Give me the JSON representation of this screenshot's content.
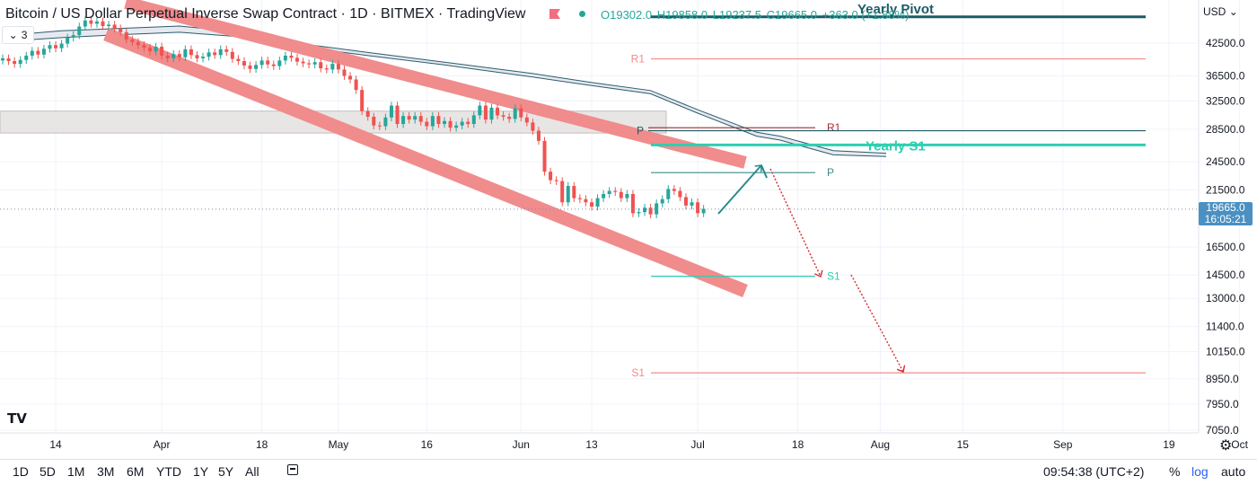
{
  "header": {
    "title": "Bitcoin / US Dollar Perpetual Inverse Swap Contract · 1D · BITMEX · TradingView",
    "ohlc": {
      "open": "O19302.0",
      "high": "H19858.0",
      "low": "L19237.5",
      "close": "C19665.0",
      "change": "+363.0 (+1.88%)"
    },
    "collapse_count": "3",
    "currency": "USD"
  },
  "price_tag": {
    "price": "19665.0",
    "countdown": "16:05:21"
  },
  "chart_data": {
    "type": "candlestick",
    "y_scale": "log",
    "ylim": [
      6500,
      52000
    ],
    "y_ticks": [
      "42500.0",
      "36500.0",
      "32500.0",
      "28500.0",
      "24500.0",
      "21500.0",
      "19665.0",
      "16500.0",
      "14500.0",
      "13000.0",
      "11400.0",
      "10150.0",
      "8950.0",
      "7950.0",
      "7050.0"
    ],
    "y_tick_values": [
      42500,
      36500,
      32500,
      28500,
      24500,
      21500,
      19665,
      16500,
      14500,
      13000,
      11400,
      10150,
      8950,
      7950,
      7050
    ],
    "x_ticks": [
      "14",
      "Apr",
      "18",
      "May",
      "16",
      "Jun",
      "13",
      "Jul",
      "18",
      "Aug",
      "15",
      "Sep",
      "19",
      "Oct"
    ],
    "x_tick_dates": [
      "2022-03-14",
      "2022-04-01",
      "2022-04-18",
      "2022-05-01",
      "2022-05-16",
      "2022-06-01",
      "2022-06-13",
      "2022-07-01",
      "2022-07-18",
      "2022-08-01",
      "2022-08-15",
      "2022-09-01",
      "2022-09-19",
      "2022-10-01"
    ],
    "closes": [
      39600,
      39100,
      38600,
      39300,
      40100,
      41000,
      40300,
      41400,
      42100,
      41500,
      42400,
      43600,
      44100,
      45900,
      47200,
      46500,
      47000,
      46000,
      46300,
      45500,
      44700,
      43200,
      42700,
      42100,
      41600,
      40900,
      41800,
      40100,
      39600,
      40400,
      39800,
      41300,
      40200,
      39600,
      39900,
      40700,
      40200,
      41300,
      40800,
      39500,
      39100,
      38300,
      37700,
      38400,
      39200,
      38500,
      38200,
      39200,
      40100,
      39700,
      39000,
      38700,
      38500,
      38900,
      37800,
      37600,
      38600,
      37600,
      36500,
      35900,
      34200,
      31000,
      30200,
      29000,
      28900,
      30100,
      31800,
      29200,
      30300,
      29800,
      30300,
      29500,
      28900,
      30300,
      29200,
      29600,
      28700,
      29000,
      29500,
      29200,
      30400,
      31800,
      29800,
      31500,
      30400,
      30200,
      29900,
      31400,
      30100,
      29400,
      28300,
      27000,
      23400,
      22500,
      22400,
      20300,
      21900,
      20700,
      20600,
      20300,
      19900,
      20700,
      21100,
      21400,
      21300,
      20700,
      21100,
      19300,
      19400,
      19800,
      19200,
      20200,
      20600,
      21600,
      21400,
      20800,
      20000,
      20300,
      19300,
      19700
    ],
    "series_closes_start_date": "2022-03-05",
    "ichimoku_upper": [
      [
        0,
        44000
      ],
      [
        10,
        45000
      ],
      [
        20,
        45500
      ],
      [
        30,
        46000
      ],
      [
        40,
        44800
      ],
      [
        50,
        42500
      ],
      [
        62,
        40700
      ],
      [
        75,
        38900
      ],
      [
        90,
        36900
      ],
      [
        100,
        35400
      ],
      [
        110,
        34100
      ],
      [
        118,
        31200
      ],
      [
        128,
        28100
      ],
      [
        132,
        27600
      ],
      [
        141,
        25800
      ],
      [
        150,
        25500
      ]
    ],
    "ichimoku_lower": [
      [
        0,
        42800
      ],
      [
        10,
        43600
      ],
      [
        20,
        44200
      ],
      [
        30,
        44700
      ],
      [
        40,
        43800
      ],
      [
        50,
        41900
      ],
      [
        62,
        40100
      ],
      [
        75,
        38400
      ],
      [
        90,
        36300
      ],
      [
        100,
        34900
      ],
      [
        110,
        33600
      ],
      [
        118,
        30700
      ],
      [
        128,
        27600
      ],
      [
        132,
        27100
      ],
      [
        141,
        25300
      ],
      [
        150,
        25100
      ]
    ],
    "annotations": {
      "pivot_lines": [
        {
          "label": "Yearly Pivot",
          "value": 48000,
          "color": "#1e5b66"
        },
        {
          "label": "R1",
          "value": 39500,
          "color": "#f28b8b"
        },
        {
          "label": "R1",
          "value": 28700,
          "color": "#a62a2a"
        },
        {
          "label": "P",
          "value": 28300,
          "color": "#1e5b66"
        },
        {
          "label": "Yearly S1",
          "value": 26500,
          "color": "#2ecfb1"
        },
        {
          "label": "P",
          "value": 23300,
          "color": "#3d8c8c"
        },
        {
          "label": "S1",
          "value": 14400,
          "color": "#2ecfb1"
        },
        {
          "label": "S1",
          "value": 9200,
          "color": "#f28b8b"
        }
      ],
      "zone": {
        "from": 28000,
        "to": 31000
      },
      "current_price": 19665
    }
  },
  "bottom_bar": {
    "ranges": [
      "1D",
      "5D",
      "1M",
      "3M",
      "6M",
      "YTD",
      "1Y",
      "5Y",
      "All"
    ],
    "time": "09:54:38 (UTC+2)",
    "percent": "%",
    "log": "log",
    "auto": "auto"
  },
  "colors": {
    "up": "#26a69a",
    "down": "#ef5350",
    "channel": "#f08c8c",
    "axis_text": "#131722",
    "grid": "#f0f3fa"
  }
}
